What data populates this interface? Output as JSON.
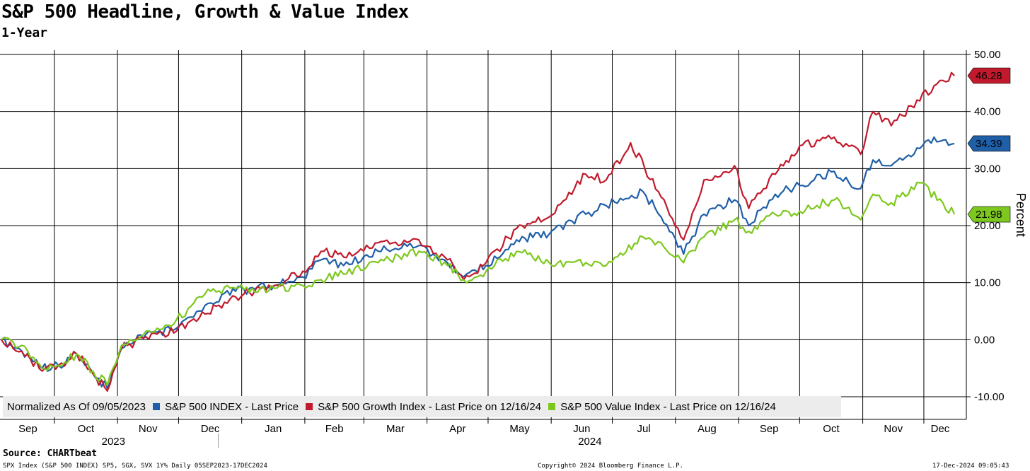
{
  "header": {
    "title": "S&P 500 Headline, Growth & Value Index",
    "subtitle": "1-Year"
  },
  "legend": {
    "normalized_note": "Normalized As Of 09/05/2023",
    "items": [
      {
        "label": "S&P 500 INDEX - Last Price",
        "color": "#1f5fa8"
      },
      {
        "label": "S&P 500 Growth Index - Last Price on 12/16/24",
        "color": "#c01a2c"
      },
      {
        "label": "S&P 500 Value Index - Last Price on 12/16/24",
        "color": "#7dc81e"
      }
    ]
  },
  "footer": {
    "source": "Source: CHARTbeat",
    "left": "SPX Index (S&P 500 INDEX) SP5, SGX, SVX 1Y%  Daily 05SEP2023-17DEC2024",
    "middle": "Copyright© 2024 Bloomberg Finance L.P.",
    "right": "17-Dec-2024 09:05:43"
  },
  "chart_data": {
    "type": "line",
    "ylabel": "Percent",
    "ylim": [
      -10,
      50
    ],
    "y_ticks": [
      "50.00",
      "40.00",
      "30.00",
      "20.00",
      "10.00",
      "0.00",
      "-10.00"
    ],
    "y_tick_values": [
      50,
      40,
      30,
      20,
      10,
      0,
      -10
    ],
    "x_months": [
      "Sep",
      "Oct",
      "Nov",
      "Dec",
      "Jan",
      "Feb",
      "Mar",
      "Apr",
      "May",
      "Jun",
      "Jul",
      "Aug",
      "Sep",
      "Oct",
      "Nov",
      "Dec"
    ],
    "x_years": [
      "2023",
      "2024"
    ],
    "x_range": [
      "2023-09-05",
      "2024-12-17"
    ],
    "last_values": [
      {
        "series": "S&P 500 Growth Index",
        "label": "46.28",
        "value": 46.28,
        "color": "#c01a2c"
      },
      {
        "series": "S&P 500 INDEX",
        "label": "34.39",
        "value": 34.39,
        "color": "#1f5fa8"
      },
      {
        "series": "S&P 500 Value Index",
        "label": "21.98",
        "value": 21.98,
        "color": "#7dc81e"
      }
    ],
    "series": [
      {
        "name": "S&P 500 INDEX - Last Price",
        "color": "#1f5fa8",
        "dates": [
          "2023-09-05",
          "2023-09-15",
          "2023-09-25",
          "2023-10-03",
          "2023-10-12",
          "2023-10-20",
          "2023-10-27",
          "2023-11-03",
          "2023-11-15",
          "2023-11-30",
          "2023-12-14",
          "2023-12-29",
          "2024-01-17",
          "2024-01-31",
          "2024-02-09",
          "2024-02-20",
          "2024-03-08",
          "2024-03-28",
          "2024-04-11",
          "2024-04-19",
          "2024-04-30",
          "2024-05-15",
          "2024-05-31",
          "2024-06-18",
          "2024-06-28",
          "2024-07-16",
          "2024-07-25",
          "2024-08-05",
          "2024-08-15",
          "2024-08-30",
          "2024-09-06",
          "2024-09-19",
          "2024-10-01",
          "2024-10-18",
          "2024-10-31",
          "2024-11-06",
          "2024-11-15",
          "2024-12-06",
          "2024-12-16"
        ],
        "values": [
          0.0,
          -2.0,
          -5.0,
          -4.5,
          -2.5,
          -6.0,
          -8.5,
          -1.5,
          1.0,
          2.0,
          6.0,
          8.5,
          9.5,
          11.0,
          14.0,
          13.0,
          15.5,
          16.5,
          13.5,
          11.0,
          13.0,
          17.5,
          18.5,
          22.0,
          23.5,
          26.0,
          21.5,
          15.0,
          22.0,
          24.5,
          20.0,
          25.5,
          27.0,
          29.5,
          26.5,
          31.5,
          30.5,
          35.5,
          34.39
        ]
      },
      {
        "name": "S&P 500 Growth Index - Last Price on 12/16/24",
        "color": "#c01a2c",
        "dates": [
          "2023-09-05",
          "2023-09-15",
          "2023-09-25",
          "2023-10-03",
          "2023-10-12",
          "2023-10-20",
          "2023-10-27",
          "2023-11-03",
          "2023-11-15",
          "2023-11-30",
          "2023-12-14",
          "2023-12-29",
          "2024-01-17",
          "2024-01-31",
          "2024-02-09",
          "2024-02-20",
          "2024-03-08",
          "2024-03-28",
          "2024-04-11",
          "2024-04-19",
          "2024-04-30",
          "2024-05-15",
          "2024-05-31",
          "2024-06-18",
          "2024-06-28",
          "2024-07-10",
          "2024-07-25",
          "2024-08-05",
          "2024-08-15",
          "2024-08-30",
          "2024-09-06",
          "2024-09-19",
          "2024-10-01",
          "2024-10-18",
          "2024-10-31",
          "2024-11-06",
          "2024-11-15",
          "2024-12-06",
          "2024-12-16"
        ],
        "values": [
          0.0,
          -2.0,
          -5.5,
          -4.5,
          -2.5,
          -6.0,
          -9.0,
          -1.5,
          0.5,
          1.5,
          4.5,
          7.5,
          9.5,
          12.0,
          15.5,
          14.5,
          17.0,
          17.5,
          14.0,
          10.5,
          13.5,
          19.5,
          21.5,
          29.0,
          28.0,
          34.5,
          25.0,
          17.5,
          28.0,
          30.5,
          23.0,
          29.0,
          34.0,
          35.5,
          32.5,
          40.0,
          37.5,
          44.5,
          46.28
        ]
      },
      {
        "name": "S&P 500 Value Index - Last Price on 12/16/24",
        "color": "#7dc81e",
        "dates": [
          "2023-09-05",
          "2023-09-15",
          "2023-09-25",
          "2023-10-03",
          "2023-10-12",
          "2023-10-20",
          "2023-10-27",
          "2023-11-03",
          "2023-11-15",
          "2023-11-30",
          "2023-12-14",
          "2023-12-29",
          "2024-01-17",
          "2024-01-31",
          "2024-02-09",
          "2024-02-20",
          "2024-03-08",
          "2024-03-28",
          "2024-04-11",
          "2024-04-19",
          "2024-04-30",
          "2024-05-15",
          "2024-05-31",
          "2024-06-18",
          "2024-06-28",
          "2024-07-16",
          "2024-07-25",
          "2024-08-05",
          "2024-08-15",
          "2024-08-30",
          "2024-09-06",
          "2024-09-19",
          "2024-10-01",
          "2024-10-18",
          "2024-10-31",
          "2024-11-06",
          "2024-11-15",
          "2024-11-29",
          "2024-12-16"
        ],
        "values": [
          0.0,
          -1.0,
          -5.0,
          -4.5,
          -2.5,
          -5.5,
          -8.0,
          -1.0,
          1.5,
          3.5,
          8.0,
          9.0,
          9.0,
          9.5,
          10.5,
          11.5,
          13.5,
          15.5,
          13.0,
          10.5,
          12.0,
          15.5,
          13.5,
          13.5,
          13.0,
          18.0,
          17.0,
          13.5,
          18.0,
          21.0,
          19.0,
          22.0,
          22.5,
          24.5,
          21.0,
          25.5,
          24.0,
          27.5,
          21.98
        ]
      }
    ]
  }
}
